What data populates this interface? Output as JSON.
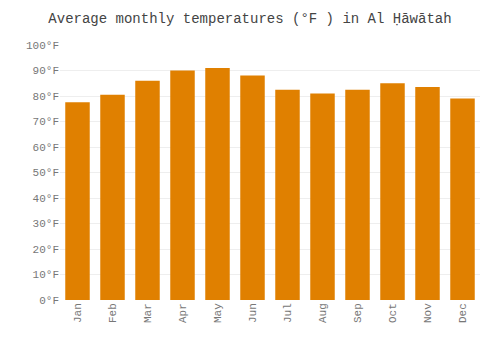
{
  "chart_data": {
    "type": "bar",
    "title": "Average monthly temperatures (°F ) in Al Ḥāwātah",
    "categories": [
      "Jan",
      "Feb",
      "Mar",
      "Apr",
      "May",
      "Jun",
      "Jul",
      "Aug",
      "Sep",
      "Oct",
      "Nov",
      "Dec"
    ],
    "values": [
      77.5,
      80.5,
      86,
      90,
      91,
      88,
      82.5,
      81,
      82.5,
      85,
      83.5,
      79
    ],
    "color": "#E08000",
    "ylim": [
      0,
      100
    ],
    "yticks": [
      {
        "value": 0,
        "label": "0°F"
      },
      {
        "value": 10,
        "label": "10°F"
      },
      {
        "value": 20,
        "label": "20°F"
      },
      {
        "value": 30,
        "label": "30°F"
      },
      {
        "value": 40,
        "label": "40°F"
      },
      {
        "value": 50,
        "label": "50°F"
      },
      {
        "value": 60,
        "label": "60°F"
      },
      {
        "value": 70,
        "label": "70°F"
      },
      {
        "value": 80,
        "label": "80°F"
      },
      {
        "value": 90,
        "label": "90°F"
      },
      {
        "value": 100,
        "label": "100°F"
      }
    ],
    "grid": true
  }
}
